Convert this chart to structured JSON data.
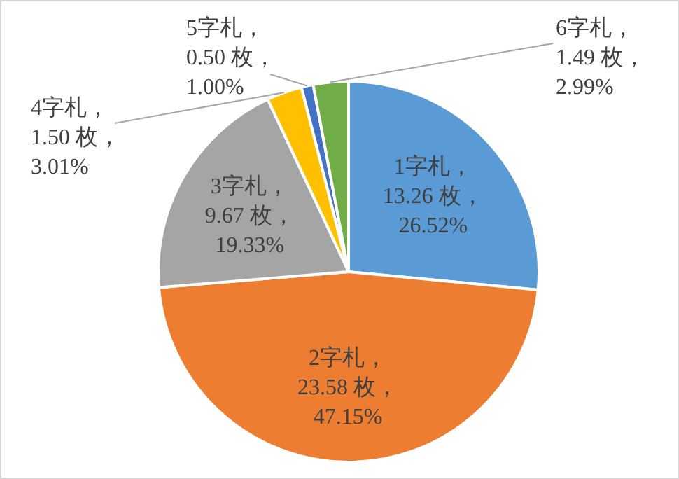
{
  "chart_data": {
    "type": "pie",
    "categories": [
      "1字札",
      "2字札",
      "3字札",
      "4字札",
      "5字札",
      "6字札"
    ],
    "values": [
      13.26,
      23.58,
      9.67,
      1.5,
      0.5,
      1.49
    ],
    "colors": [
      "#5b9bd5",
      "#ed7d31",
      "#a5a5a5",
      "#ffc000",
      "#4472c4",
      "#70ad47"
    ],
    "value_labels": [
      "，\n13.26 枚，\n26.52%",
      "，\n23.58 枚，\n47.15%",
      "，\n9.67 枚，\n19.33%",
      "，\n1.50 枚，\n3.01%",
      "，\n0.50 枚，\n1.00%",
      "，\n1.49 枚，\n2.99%"
    ]
  }
}
